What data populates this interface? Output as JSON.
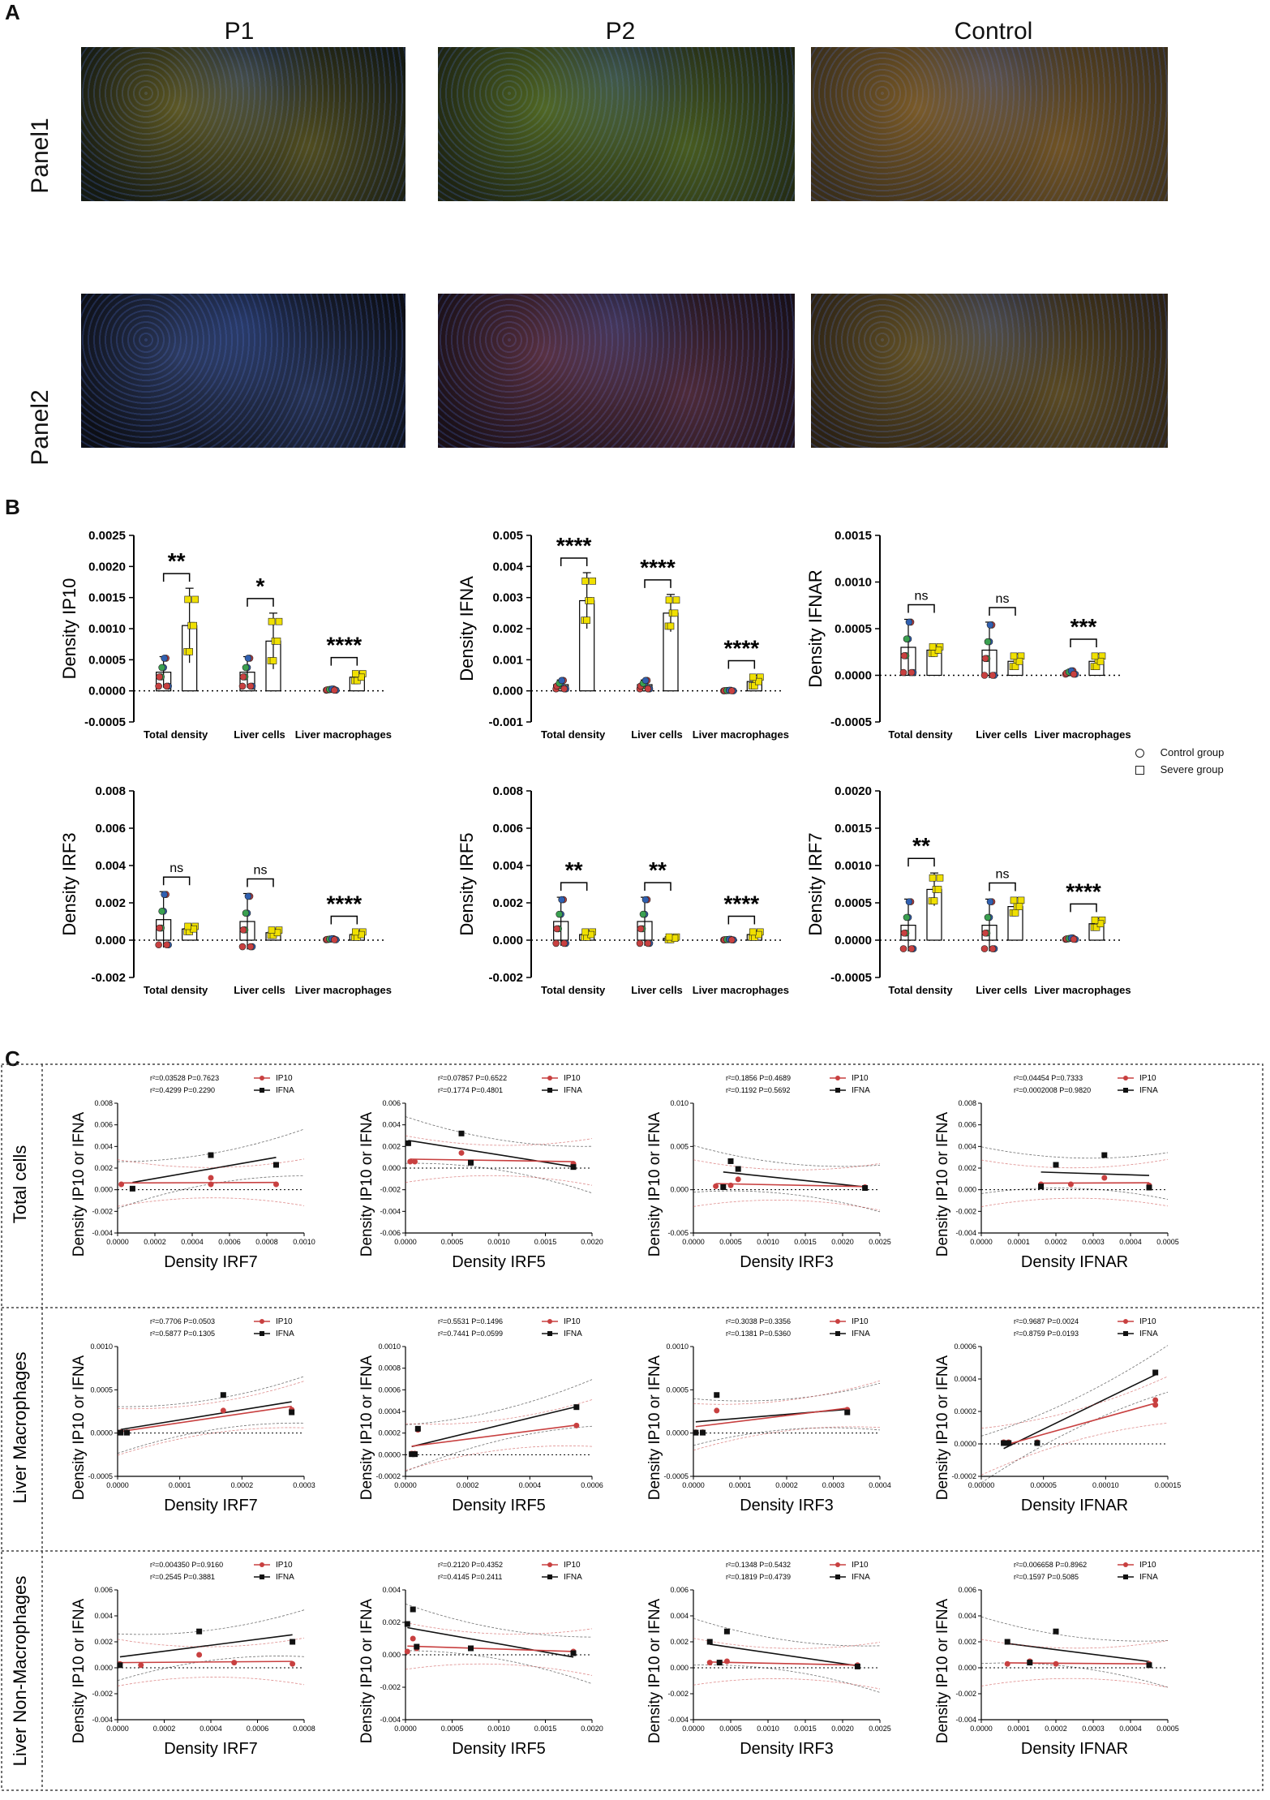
{
  "panel_labels": {
    "a": "A",
    "b": "B",
    "c": "C"
  },
  "micro": {
    "columns": [
      "P1",
      "P2",
      "Control"
    ],
    "rows": [
      "Panel1",
      "Panel2"
    ],
    "cells": [
      {
        "name": "P1-Panel1",
        "tone": "#c8b23a",
        "base": "#151a12"
      },
      {
        "name": "P2-Panel1",
        "tone": "#9bc83a",
        "base": "#1e2412"
      },
      {
        "name": "Control-Panel1",
        "tone": "#d89a3a",
        "base": "#3b2f1a"
      },
      {
        "name": "P1-Panel2",
        "tone": "#5a78c8",
        "base": "#0d0f16"
      },
      {
        "name": "P2-Panel2",
        "tone": "#b4607a",
        "base": "#1a1018"
      },
      {
        "name": "Control-Panel2",
        "tone": "#b89a40",
        "base": "#2c2214"
      }
    ]
  },
  "legend_b": {
    "control": "Control group",
    "severe": "Severe group"
  },
  "colors": {
    "control_fill": "#ffffff",
    "severe_fill": "#f0e000",
    "red": "#c84040",
    "green": "#3aa050",
    "blue": "#3060b0",
    "ip10": "#c84040",
    "ifna": "#111111"
  },
  "chart_data": [
    {
      "type": "bar",
      "ylabel": "Density IP10",
      "ylim": [
        -0.0005,
        0.0025
      ],
      "ticks": [
        "0.0025",
        "0.0020",
        "0.0015",
        "0.0010",
        "0.0005",
        "0.0000",
        "-0.0005"
      ],
      "categories": [
        "Total density",
        "Liver cells",
        "Liver macrophages"
      ],
      "series": [
        {
          "values": [
            0.0003,
            0.0003,
            2e-05
          ]
        },
        {
          "values": [
            0.00105,
            0.0008,
            0.00022
          ]
        }
      ],
      "errors": [
        [
          0.00025,
          0.00025,
          1e-05
        ],
        [
          0.0006,
          0.00045,
          8e-05
        ]
      ],
      "sig": [
        "**",
        "*",
        "****"
      ]
    },
    {
      "type": "bar",
      "ylabel": "Density IFNA",
      "ylim": [
        -0.001,
        0.005
      ],
      "ticks": [
        "0.005",
        "0.004",
        "0.003",
        "0.002",
        "0.001",
        "0.000",
        "-0.001"
      ],
      "categories": [
        "Total density",
        "Liver cells",
        "Liver macrophages"
      ],
      "series": [
        {
          "values": [
            0.0002,
            0.0002,
            1e-05
          ]
        },
        {
          "values": [
            0.0029,
            0.0025,
            0.0003
          ]
        }
      ],
      "errors": [
        [
          0.00015,
          0.00015,
          1e-05
        ],
        [
          0.0009,
          0.0006,
          0.0002
        ]
      ],
      "sig": [
        "****",
        "****",
        "****"
      ]
    },
    {
      "type": "bar",
      "ylabel": "Density IFNAR",
      "ylim": [
        -0.0005,
        0.0015
      ],
      "ticks": [
        "0.0015",
        "0.0010",
        "0.0005",
        "0.0000",
        "-0.0005"
      ],
      "categories": [
        "Total density",
        "Liver cells",
        "Liver macrophages"
      ],
      "series": [
        {
          "values": [
            0.0003,
            0.00027,
            3e-05
          ]
        },
        {
          "values": [
            0.00027,
            0.00015,
            0.00015
          ]
        }
      ],
      "errors": [
        [
          0.0003,
          0.0003,
          2e-05
        ],
        [
          5e-05,
          8e-05,
          8e-05
        ]
      ],
      "sig": [
        "ns",
        "ns",
        "***"
      ]
    },
    {
      "type": "bar",
      "ylabel": "Density IRF3",
      "ylim": [
        -0.002,
        0.008
      ],
      "ticks": [
        "0.008",
        "0.006",
        "0.004",
        "0.002",
        "0.000",
        "-0.002"
      ],
      "categories": [
        "Total density",
        "Liver cells",
        "Liver macrophages"
      ],
      "series": [
        {
          "values": [
            0.0011,
            0.001,
            5e-05
          ]
        },
        {
          "values": [
            0.0006,
            0.0004,
            0.0003
          ]
        }
      ],
      "errors": [
        [
          0.0015,
          0.0015,
          3e-05
        ],
        [
          0.0002,
          0.0002,
          0.0002
        ]
      ],
      "sig": [
        "ns",
        "ns",
        "****"
      ]
    },
    {
      "type": "bar",
      "ylabel": "Density IRF5",
      "ylim": [
        -0.002,
        0.008
      ],
      "ticks": [
        "0.008",
        "0.006",
        "0.004",
        "0.002",
        "0.000",
        "-0.002"
      ],
      "categories": [
        "Total density",
        "Liver cells",
        "Liver macrophages"
      ],
      "series": [
        {
          "values": [
            0.001,
            0.001,
            3e-05
          ]
        },
        {
          "values": [
            0.0003,
            0.0001,
            0.0003
          ]
        }
      ],
      "errors": [
        [
          0.0013,
          0.0013,
          2e-05
        ],
        [
          0.0002,
          0.0001,
          0.0002
        ]
      ],
      "sig": [
        "**",
        "**",
        "****"
      ]
    },
    {
      "type": "bar",
      "ylabel": "Density IRF7",
      "ylim": [
        -0.0005,
        0.002
      ],
      "ticks": [
        "0.0020",
        "0.0015",
        "0.0010",
        "0.0005",
        "0.0000",
        "-0.0005"
      ],
      "categories": [
        "Total density",
        "Liver cells",
        "Liver macrophages"
      ],
      "series": [
        {
          "values": [
            0.0002,
            0.0002,
            2e-05
          ]
        },
        {
          "values": [
            0.00068,
            0.00045,
            0.00022
          ]
        }
      ],
      "errors": [
        [
          0.00035,
          0.00035,
          1e-05
        ],
        [
          0.00022,
          0.00012,
          7e-05
        ]
      ],
      "sig": [
        "**",
        "ns",
        "****"
      ]
    }
  ],
  "scatter_c": {
    "rows": [
      "Total cells",
      "Liver Macrophages",
      "Liver Non-Macrophages"
    ],
    "ylabel": "Density IP10 or IFNA",
    "series_names": [
      "IP10",
      "IFNA"
    ],
    "plots": [
      {
        "xlabel": "Density IRF7",
        "xlim": [
          0,
          0.001
        ],
        "xticks": [
          "0.0000",
          "0.0002",
          "0.0004",
          "0.0006",
          "0.0008",
          "0.0010"
        ],
        "ylim": [
          -0.004,
          0.008
        ],
        "yticks": [
          "0.008",
          "0.006",
          "0.004",
          "0.002",
          "0.000",
          "-0.002",
          "-0.004"
        ],
        "stats": [
          "r²=0.03528  P=0.7623",
          "r²=0.4299  P=0.2290"
        ],
        "ip10": [
          [
            2e-05,
            0.0005
          ],
          [
            0.0005,
            0.0005
          ],
          [
            0.0005,
            0.0011
          ],
          [
            0.00085,
            0.0005
          ]
        ],
        "ifna": [
          [
            8e-05,
            0.0001
          ],
          [
            0.0005,
            0.0032
          ],
          [
            0.00085,
            0.0023
          ]
        ]
      },
      {
        "xlabel": "Density IRF5",
        "xlim": [
          0,
          0.002
        ],
        "xticks": [
          "0.0000",
          "0.0005",
          "0.0010",
          "0.0015",
          "0.0020"
        ],
        "ylim": [
          -0.006,
          0.006
        ],
        "yticks": [
          "0.006",
          "0.004",
          "0.002",
          "0.000",
          "-0.002",
          "-0.004",
          "-0.006"
        ],
        "stats": [
          "r²=0.07857  P=0.6522",
          "r²=0.1774  P=0.4801"
        ],
        "ip10": [
          [
            5e-05,
            0.0006
          ],
          [
            0.0001,
            0.0006
          ],
          [
            0.0006,
            0.0014
          ],
          [
            0.0018,
            0.0004
          ]
        ],
        "ifna": [
          [
            3e-05,
            0.0023
          ],
          [
            0.0006,
            0.0032
          ],
          [
            0.0007,
            0.0005
          ],
          [
            0.0018,
            0.0001
          ]
        ]
      },
      {
        "xlabel": "Density IRF3",
        "xlim": [
          0,
          0.0025
        ],
        "xticks": [
          "0.0000",
          "0.0005",
          "0.0010",
          "0.0015",
          "0.0020",
          "0.0025"
        ],
        "ylim": [
          -0.005,
          0.01
        ],
        "yticks": [
          "0.010",
          "0.005",
          "0.000",
          "-0.005"
        ],
        "stats": [
          "r²=0.1856  P=0.4689",
          "r²=0.1192  P=0.5692"
        ],
        "ip10": [
          [
            0.0003,
            0.0004
          ],
          [
            0.0005,
            0.0005
          ],
          [
            0.0006,
            0.0012
          ],
          [
            0.0023,
            0.0003
          ]
        ],
        "ifna": [
          [
            0.0005,
            0.0033
          ],
          [
            0.0006,
            0.0024
          ],
          [
            0.0004,
            0.0003
          ],
          [
            0.0023,
            0.0002
          ]
        ]
      },
      {
        "xlabel": "Density IFNAR",
        "xlim": [
          0,
          0.0005
        ],
        "xticks": [
          "0.0000",
          "0.0001",
          "0.0002",
          "0.0003",
          "0.0004",
          "0.0005"
        ],
        "ylim": [
          -0.004,
          0.008
        ],
        "yticks": [
          "0.008",
          "0.006",
          "0.004",
          "0.002",
          "0.000",
          "-0.002",
          "-0.004"
        ],
        "stats": [
          "r²=0.04454  P=0.7333",
          "r²=0.0002008  P=0.9820"
        ],
        "ip10": [
          [
            0.00016,
            0.0005
          ],
          [
            0.00024,
            0.0005
          ],
          [
            0.00033,
            0.0011
          ],
          [
            0.00045,
            0.0004
          ]
        ],
        "ifna": [
          [
            0.00016,
            0.0003
          ],
          [
            0.0002,
            0.0023
          ],
          [
            0.00033,
            0.0032
          ],
          [
            0.00045,
            0.0002
          ]
        ]
      },
      {
        "xlabel": "Density IRF7",
        "xlim": [
          0,
          0.0003
        ],
        "xticks": [
          "0.0000",
          "0.0001",
          "0.0002",
          "0.0003"
        ],
        "ylim": [
          -0.0005,
          0.001
        ],
        "yticks": [
          "0.0010",
          "0.0005",
          "0.0000",
          "-0.0005"
        ],
        "stats": [
          "r²=0.7706  P=0.0503",
          "r²=0.5877  P=0.1305"
        ],
        "ip10": [
          [
            5e-06,
            1e-05
          ],
          [
            1.5e-05,
            1e-05
          ],
          [
            0.00017,
            0.00026
          ],
          [
            0.00028,
            0.00027
          ]
        ],
        "ifna": [
          [
            5e-06,
            5e-06
          ],
          [
            1.5e-05,
            5e-06
          ],
          [
            0.00017,
            0.00044
          ],
          [
            0.00028,
            0.00024
          ]
        ]
      },
      {
        "xlabel": "Density IRF5",
        "xlim": [
          0,
          0.0006
        ],
        "xticks": [
          "0.0000",
          "0.0002",
          "0.0004",
          "0.0006"
        ],
        "ylim": [
          -0.0002,
          0.001
        ],
        "yticks": [
          "0.0010",
          "0.0008",
          "0.0006",
          "0.0004",
          "0.0002",
          "0.0000",
          "-0.0002"
        ],
        "stats": [
          "r²=0.5531  P=0.1496",
          "r²=0.7441  P=0.0599"
        ],
        "ip10": [
          [
            2e-05,
            1e-05
          ],
          [
            3e-05,
            1e-05
          ],
          [
            4e-05,
            0.00023
          ],
          [
            0.00055,
            0.00027
          ]
        ],
        "ifna": [
          [
            2e-05,
            5e-06
          ],
          [
            3e-05,
            5e-06
          ],
          [
            4e-05,
            0.00024
          ],
          [
            0.00055,
            0.00044
          ]
        ]
      },
      {
        "xlabel": "Density IRF3",
        "xlim": [
          0,
          0.0004
        ],
        "xticks": [
          "0.0000",
          "0.0001",
          "0.0002",
          "0.0003",
          "0.0004"
        ],
        "ylim": [
          -0.0005,
          0.001
        ],
        "yticks": [
          "0.0010",
          "0.0005",
          "0.0000",
          "-0.0005"
        ],
        "stats": [
          "r²=0.3038  P=0.3356",
          "r²=0.1381  P=0.5360"
        ],
        "ip10": [
          [
            5e-06,
            1e-05
          ],
          [
            2e-05,
            1e-05
          ],
          [
            5e-05,
            0.00026
          ],
          [
            0.00033,
            0.00027
          ]
        ],
        "ifna": [
          [
            5e-06,
            5e-06
          ],
          [
            2e-05,
            5e-06
          ],
          [
            5e-05,
            0.00044
          ],
          [
            0.00033,
            0.00024
          ]
        ]
      },
      {
        "xlabel": "Density IFNAR",
        "xlim": [
          0,
          0.00015
        ],
        "xticks": [
          "0.00000",
          "0.00005",
          "0.00010",
          "0.00015"
        ],
        "ylim": [
          -0.0002,
          0.0006
        ],
        "yticks": [
          "0.0006",
          "0.0004",
          "0.0002",
          "0.0000",
          "-0.0002"
        ],
        "stats": [
          "r²=0.9687  P=0.0024",
          "r²=0.8759  P=0.0193"
        ],
        "ip10": [
          [
            1.8e-05,
            1e-05
          ],
          [
            2.2e-05,
            1e-05
          ],
          [
            4.5e-05,
            1e-05
          ],
          [
            0.00014,
            0.00027
          ],
          [
            0.00014,
            0.00024
          ]
        ],
        "ifna": [
          [
            1.8e-05,
            5e-06
          ],
          [
            2.2e-05,
            5e-06
          ],
          [
            4.5e-05,
            5e-06
          ],
          [
            0.00014,
            0.00044
          ]
        ]
      },
      {
        "xlabel": "Density IRF7",
        "xlim": [
          0,
          0.0008
        ],
        "xticks": [
          "0.0000",
          "0.0002",
          "0.0004",
          "0.0006",
          "0.0008"
        ],
        "ylim": [
          -0.004,
          0.006
        ],
        "yticks": [
          "0.006",
          "0.004",
          "0.002",
          "0.000",
          "-0.002",
          "-0.004"
        ],
        "stats": [
          "r²=0.004350  P=0.9160",
          "r²=0.2545  P=0.3881"
        ],
        "ip10": [
          [
            1e-05,
            0.0003
          ],
          [
            0.0001,
            0.0002
          ],
          [
            0.00035,
            0.001
          ],
          [
            0.0005,
            0.0004
          ],
          [
            0.00075,
            0.0003
          ]
        ],
        "ifna": [
          [
            1e-05,
            0.0002
          ],
          [
            0.00035,
            0.0028
          ],
          [
            0.00075,
            0.002
          ]
        ]
      },
      {
        "xlabel": "Density IRF5",
        "xlim": [
          0,
          0.002
        ],
        "xticks": [
          "0.0000",
          "0.0005",
          "0.0010",
          "0.0015",
          "0.0020"
        ],
        "ylim": [
          -0.004,
          0.004
        ],
        "yticks": [
          "0.004",
          "0.002",
          "0.000",
          "-0.002",
          "-0.004"
        ],
        "stats": [
          "r²=0.2120  P=0.4352",
          "r²=0.4145  P=0.2411"
        ],
        "ip10": [
          [
            2e-05,
            0.0002
          ],
          [
            8e-05,
            0.001
          ],
          [
            0.00012,
            0.0004
          ],
          [
            0.0007,
            0.0004
          ],
          [
            0.0018,
            0.0002
          ]
        ],
        "ifna": [
          [
            2e-05,
            0.0019
          ],
          [
            8e-05,
            0.0028
          ],
          [
            0.00012,
            0.0005
          ],
          [
            0.0007,
            0.0004
          ],
          [
            0.0018,
            0.0001
          ]
        ]
      },
      {
        "xlabel": "Density IRF3",
        "xlim": [
          0,
          0.0025
        ],
        "xticks": [
          "0.0000",
          "0.0005",
          "0.0010",
          "0.0015",
          "0.0020",
          "0.0025"
        ],
        "ylim": [
          -0.004,
          0.006
        ],
        "yticks": [
          "0.006",
          "0.004",
          "0.002",
          "0.000",
          "-0.002",
          "-0.004"
        ],
        "stats": [
          "r²=0.1348  P=0.5432",
          "r²=0.1819  P=0.4739"
        ],
        "ip10": [
          [
            0.00022,
            0.0004
          ],
          [
            0.00035,
            0.0004
          ],
          [
            0.00045,
            0.0005
          ],
          [
            0.0022,
            0.0002
          ]
        ],
        "ifna": [
          [
            0.00022,
            0.002
          ],
          [
            0.00045,
            0.0028
          ],
          [
            0.00035,
            0.0004
          ],
          [
            0.0022,
            0.0001
          ]
        ]
      },
      {
        "xlabel": "Density IFNAR",
        "xlim": [
          0,
          0.0005
        ],
        "xticks": [
          "0.0000",
          "0.0001",
          "0.0002",
          "0.0003",
          "0.0004",
          "0.0005"
        ],
        "ylim": [
          -0.004,
          0.006
        ],
        "yticks": [
          "0.006",
          "0.004",
          "0.002",
          "0.000",
          "-0.002",
          "-0.004"
        ],
        "stats": [
          "r²=0.006658  P=0.8962",
          "r²=0.1597  P=0.5085"
        ],
        "ip10": [
          [
            7e-05,
            0.0003
          ],
          [
            0.00013,
            0.0005
          ],
          [
            0.0002,
            0.0003
          ],
          [
            0.00045,
            0.0003
          ]
        ],
        "ifna": [
          [
            7e-05,
            0.002
          ],
          [
            0.0002,
            0.0028
          ],
          [
            0.00013,
            0.0004
          ],
          [
            0.00045,
            0.0002
          ]
        ]
      }
    ]
  }
}
